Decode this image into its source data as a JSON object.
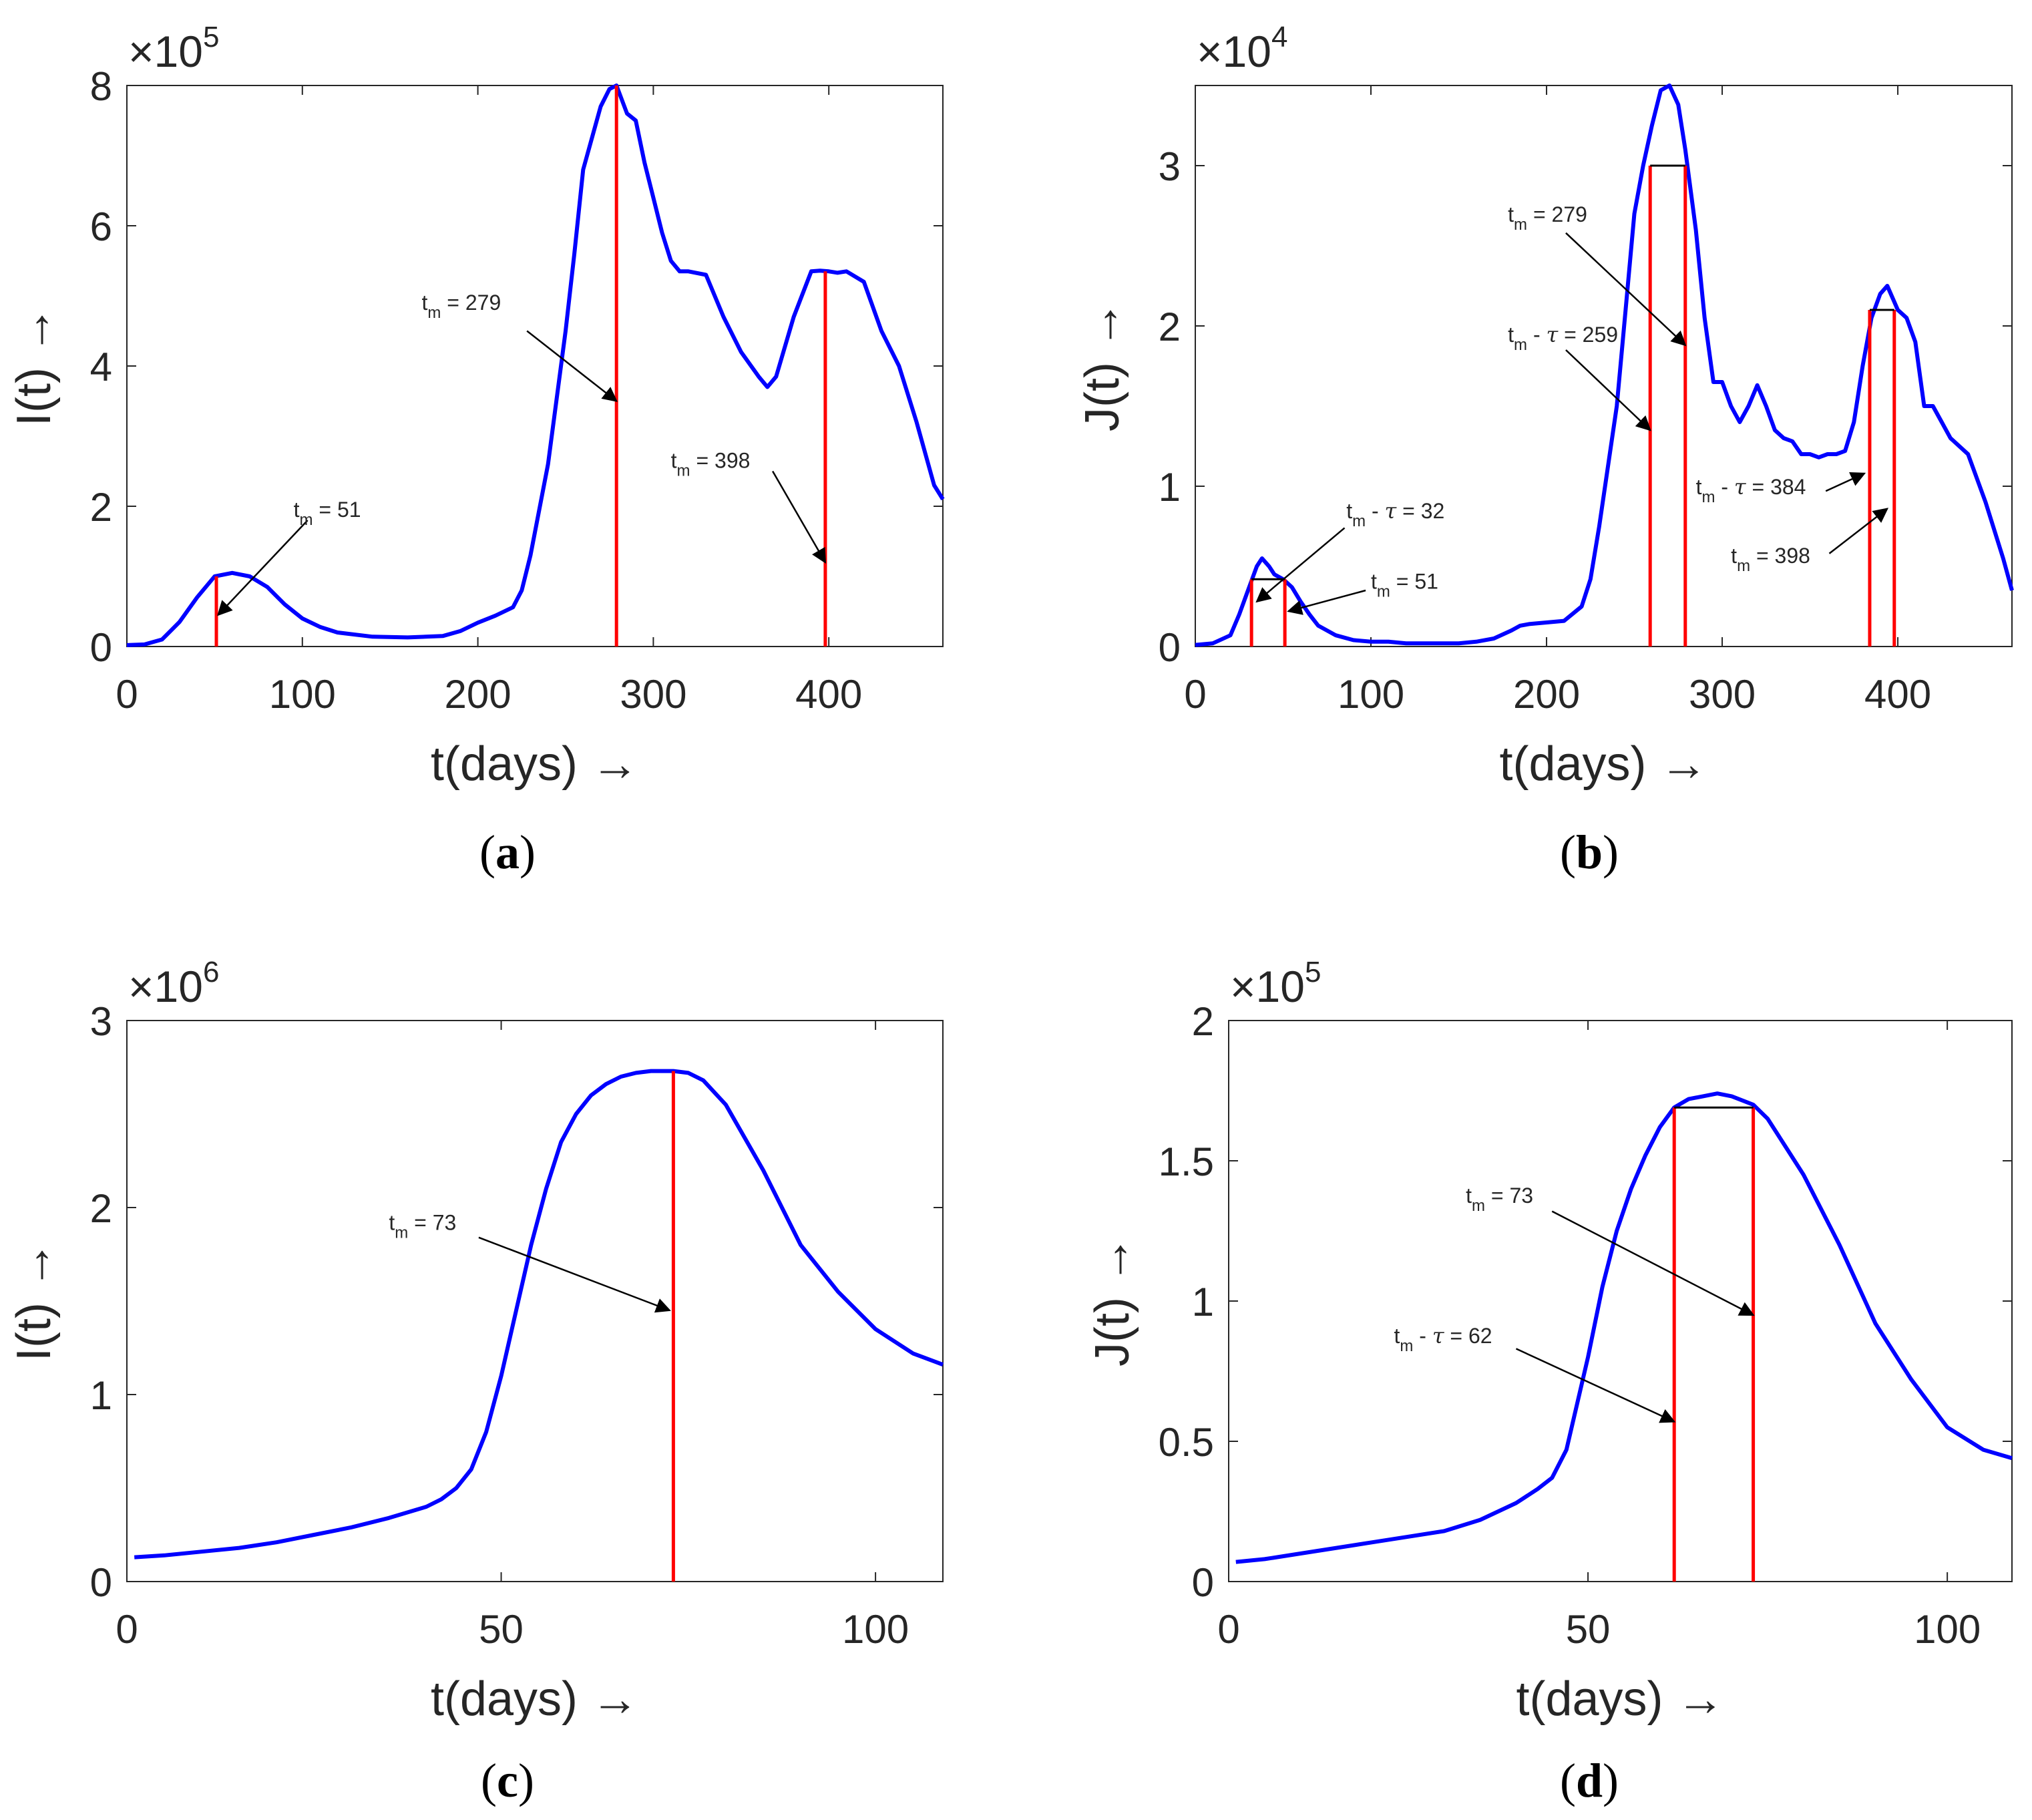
{
  "colors": {
    "curve": "#0000ff",
    "marker": "#ff0000",
    "bracket": "#000000",
    "axis": "#262626"
  },
  "chart_data": [
    {
      "id": "a",
      "type": "line",
      "caption": "(a)",
      "caption_letter": "a",
      "xlabel": "t(days) →",
      "ylabel": "I(t) →",
      "xlim": [
        0,
        465
      ],
      "ylim": [
        0,
        8
      ],
      "xticks": [
        0,
        100,
        200,
        300,
        400
      ],
      "yticks": [
        0,
        2,
        4,
        6,
        8
      ],
      "xtick_labels": [
        "0",
        "100",
        "200",
        "300",
        "400"
      ],
      "ytick_labels": [
        "0",
        "2",
        "4",
        "6",
        "8"
      ],
      "exponent_base": "×10",
      "exponent_power": "5",
      "series": [
        {
          "name": "I(t)",
          "x": [
            0,
            10,
            20,
            30,
            40,
            50,
            60,
            70,
            80,
            90,
            100,
            110,
            120,
            140,
            160,
            180,
            190,
            200,
            210,
            220,
            225,
            230,
            240,
            250,
            255,
            260,
            270,
            275,
            279,
            285,
            290,
            295,
            300,
            305,
            310,
            315,
            320,
            330,
            340,
            350,
            360,
            365,
            370,
            380,
            390,
            395,
            400,
            405,
            410,
            420,
            430,
            440,
            450,
            460,
            465
          ],
          "y": [
            0.02,
            0.03,
            0.1,
            0.35,
            0.7,
            1.0,
            1.05,
            1.0,
            0.85,
            0.6,
            0.4,
            0.28,
            0.2,
            0.14,
            0.13,
            0.15,
            0.22,
            0.34,
            0.44,
            0.56,
            0.8,
            1.3,
            2.6,
            4.5,
            5.6,
            6.8,
            7.7,
            7.95,
            8.0,
            7.6,
            7.5,
            6.9,
            6.4,
            5.9,
            5.5,
            5.35,
            5.35,
            5.3,
            4.7,
            4.2,
            3.85,
            3.7,
            3.85,
            4.7,
            5.35,
            5.36,
            5.35,
            5.33,
            5.35,
            5.2,
            4.5,
            4.0,
            3.2,
            2.3,
            2.1
          ]
        }
      ],
      "markers": [
        {
          "kind": "line",
          "x": 51,
          "y": 1.0
        },
        {
          "kind": "line",
          "x": 279,
          "y": 8.0
        },
        {
          "kind": "line",
          "x": 398,
          "y": 5.35
        }
      ],
      "annotations": [
        {
          "base": "t",
          "sub": "m",
          "rest": " = 51",
          "tau": false,
          "tx": 95,
          "ty": 1.85,
          "ax": 103,
          "ay": 1.8,
          "hx": 52,
          "hy": 0.45
        },
        {
          "base": "t",
          "sub": "m",
          "rest": " = 279",
          "tau": false,
          "tx": 168,
          "ty": 4.8,
          "ax": 228,
          "ay": 4.5,
          "hx": 279,
          "hy": 3.5
        },
        {
          "base": "t",
          "sub": "m",
          "rest": " = 398",
          "tau": false,
          "tx": 310,
          "ty": 2.55,
          "ax": 368,
          "ay": 2.5,
          "hx": 398,
          "hy": 1.2
        }
      ]
    },
    {
      "id": "b",
      "type": "line",
      "caption": "(b)",
      "caption_letter": "b",
      "xlabel": "t(days) →",
      "ylabel": "J(t) →",
      "xlim": [
        0,
        465
      ],
      "ylim": [
        0,
        3.5
      ],
      "xticks": [
        0,
        100,
        200,
        300,
        400
      ],
      "yticks": [
        0,
        1,
        2,
        3
      ],
      "xtick_labels": [
        "0",
        "100",
        "200",
        "300",
        "400"
      ],
      "ytick_labels": [
        "0",
        "1",
        "2",
        "3"
      ],
      "exponent_base": "×10",
      "exponent_power": "4",
      "series": [
        {
          "name": "J(t)",
          "x": [
            0,
            10,
            20,
            25,
            30,
            35,
            38,
            42,
            45,
            50,
            55,
            60,
            65,
            70,
            80,
            90,
            100,
            110,
            120,
            130,
            140,
            150,
            160,
            170,
            180,
            185,
            190,
            200,
            210,
            220,
            225,
            230,
            240,
            245,
            250,
            255,
            260,
            265,
            270,
            275,
            279,
            285,
            290,
            295,
            300,
            305,
            310,
            315,
            320,
            325,
            330,
            335,
            340,
            345,
            350,
            355,
            360,
            365,
            370,
            375,
            380,
            385,
            390,
            394,
            398,
            400,
            405,
            410,
            415,
            420,
            425,
            430,
            440,
            450,
            460,
            465
          ],
          "y": [
            0.01,
            0.02,
            0.07,
            0.2,
            0.35,
            0.5,
            0.55,
            0.5,
            0.45,
            0.42,
            0.37,
            0.28,
            0.2,
            0.13,
            0.07,
            0.04,
            0.03,
            0.03,
            0.02,
            0.02,
            0.02,
            0.02,
            0.03,
            0.05,
            0.1,
            0.13,
            0.14,
            0.15,
            0.16,
            0.25,
            0.42,
            0.75,
            1.5,
            2.1,
            2.7,
            3.0,
            3.25,
            3.47,
            3.5,
            3.38,
            3.1,
            2.6,
            2.05,
            1.65,
            1.65,
            1.5,
            1.4,
            1.5,
            1.63,
            1.5,
            1.35,
            1.3,
            1.28,
            1.2,
            1.2,
            1.18,
            1.2,
            1.2,
            1.22,
            1.4,
            1.75,
            2.05,
            2.2,
            2.25,
            2.15,
            2.1,
            2.05,
            1.9,
            1.5,
            1.5,
            1.4,
            1.3,
            1.2,
            0.9,
            0.55,
            0.35
          ]
        }
      ],
      "brackets": [
        {
          "x1": 32,
          "x2": 51,
          "y": 0.42
        },
        {
          "x1": 259,
          "x2": 279,
          "y": 3.0
        },
        {
          "x1": 384,
          "x2": 398,
          "y": 2.1
        }
      ],
      "annotations": [
        {
          "base": "t",
          "sub": "m",
          "rest": " = 51",
          "tau": false,
          "tx": 100,
          "ty": 0.36,
          "ax": 97,
          "ay": 0.35,
          "hx": 53,
          "hy": 0.22
        },
        {
          "base": "t",
          "sub": "m",
          "rest": " = 32",
          "tau": true,
          "tx": 86,
          "ty": 0.8,
          "ax": 85,
          "ay": 0.74,
          "hx": 35,
          "hy": 0.28
        },
        {
          "base": "t",
          "sub": "m",
          "rest": " = 259",
          "tau": true,
          "tx": 178,
          "ty": 1.9,
          "ax": 211,
          "ay": 1.85,
          "hx": 259,
          "hy": 1.35
        },
        {
          "base": "t",
          "sub": "m",
          "rest": " = 279",
          "tau": false,
          "tx": 178,
          "ty": 2.65,
          "ax": 211,
          "ay": 2.58,
          "hx": 279,
          "hy": 1.88
        },
        {
          "base": "t",
          "sub": "m",
          "rest": " = 384",
          "tau": true,
          "tx": 285,
          "ty": 0.95,
          "ax": 359,
          "ay": 0.97,
          "hx": 381,
          "hy": 1.08
        },
        {
          "base": "t",
          "sub": "m",
          "rest": " = 398",
          "tau": false,
          "tx": 305,
          "ty": 0.52,
          "ax": 361,
          "ay": 0.58,
          "hx": 394,
          "hy": 0.86
        }
      ]
    },
    {
      "id": "c",
      "type": "line",
      "caption": "(c)",
      "caption_letter": "c",
      "xlabel": "t(days) →",
      "ylabel": "I(t) →",
      "xlim": [
        0,
        109
      ],
      "ylim": [
        0,
        3
      ],
      "xticks": [
        0,
        50,
        100
      ],
      "yticks": [
        0,
        1,
        2,
        3
      ],
      "xtick_labels": [
        "0",
        "50",
        "100"
      ],
      "ytick_labels": [
        "0",
        "1",
        "2",
        "3"
      ],
      "exponent_base": "×10",
      "exponent_power": "6",
      "series": [
        {
          "name": "I(t)",
          "x": [
            1,
            5,
            10,
            15,
            20,
            25,
            30,
            35,
            40,
            42,
            44,
            46,
            48,
            50,
            52,
            54,
            56,
            58,
            60,
            62,
            64,
            66,
            68,
            70,
            72,
            73,
            75,
            77,
            80,
            85,
            90,
            95,
            100,
            105,
            109
          ],
          "y": [
            0.13,
            0.14,
            0.16,
            0.18,
            0.21,
            0.25,
            0.29,
            0.34,
            0.4,
            0.44,
            0.5,
            0.6,
            0.8,
            1.1,
            1.45,
            1.8,
            2.1,
            2.35,
            2.5,
            2.6,
            2.66,
            2.7,
            2.72,
            2.73,
            2.73,
            2.73,
            2.72,
            2.68,
            2.55,
            2.2,
            1.8,
            1.55,
            1.35,
            1.22,
            1.16
          ]
        }
      ],
      "markers": [
        {
          "kind": "line",
          "x": 73,
          "y": 2.73
        }
      ],
      "annotations": [
        {
          "base": "t",
          "sub": "m",
          "rest": " = 73",
          "tau": false,
          "tx": 35,
          "ty": 1.88,
          "ax": 47,
          "ay": 1.84,
          "hx": 72.5,
          "hy": 1.45
        }
      ]
    },
    {
      "id": "d",
      "type": "line",
      "caption": "(d)",
      "caption_letter": "d",
      "xlabel": "t(days) →",
      "ylabel": "J(t) →",
      "xlim": [
        0,
        109
      ],
      "ylim": [
        0,
        2
      ],
      "xticks": [
        0,
        50,
        100
      ],
      "yticks": [
        0,
        0.5,
        1,
        1.5,
        2
      ],
      "xtick_labels": [
        "0",
        "50",
        "100"
      ],
      "ytick_labels": [
        "0",
        "0.5",
        "1",
        "1.5",
        "2"
      ],
      "exponent_base": "×10",
      "exponent_power": "5",
      "series": [
        {
          "name": "J(t)",
          "x": [
            1,
            5,
            10,
            15,
            20,
            25,
            30,
            35,
            40,
            43,
            45,
            47,
            50,
            52,
            54,
            56,
            58,
            60,
            62,
            64,
            66,
            68,
            70,
            72,
            73,
            75,
            78,
            80,
            85,
            90,
            95,
            100,
            105,
            109
          ],
          "y": [
            0.07,
            0.08,
            0.1,
            0.12,
            0.14,
            0.16,
            0.18,
            0.22,
            0.28,
            0.33,
            0.37,
            0.47,
            0.8,
            1.05,
            1.25,
            1.4,
            1.52,
            1.62,
            1.69,
            1.72,
            1.73,
            1.74,
            1.73,
            1.71,
            1.7,
            1.65,
            1.53,
            1.45,
            1.2,
            0.92,
            0.72,
            0.55,
            0.47,
            0.44
          ]
        }
      ],
      "brackets": [
        {
          "x1": 62,
          "x2": 73,
          "y": 1.69
        }
      ],
      "annotations": [
        {
          "base": "t",
          "sub": "m",
          "rest": " = 73",
          "tau": false,
          "tx": 33,
          "ty": 1.35,
          "ax": 45,
          "ay": 1.32,
          "hx": 73,
          "hy": 0.95
        },
        {
          "base": "t",
          "sub": "m",
          "rest": " = 62",
          "tau": true,
          "tx": 23,
          "ty": 0.85,
          "ax": 40,
          "ay": 0.83,
          "hx": 62,
          "hy": 0.57
        }
      ]
    }
  ]
}
